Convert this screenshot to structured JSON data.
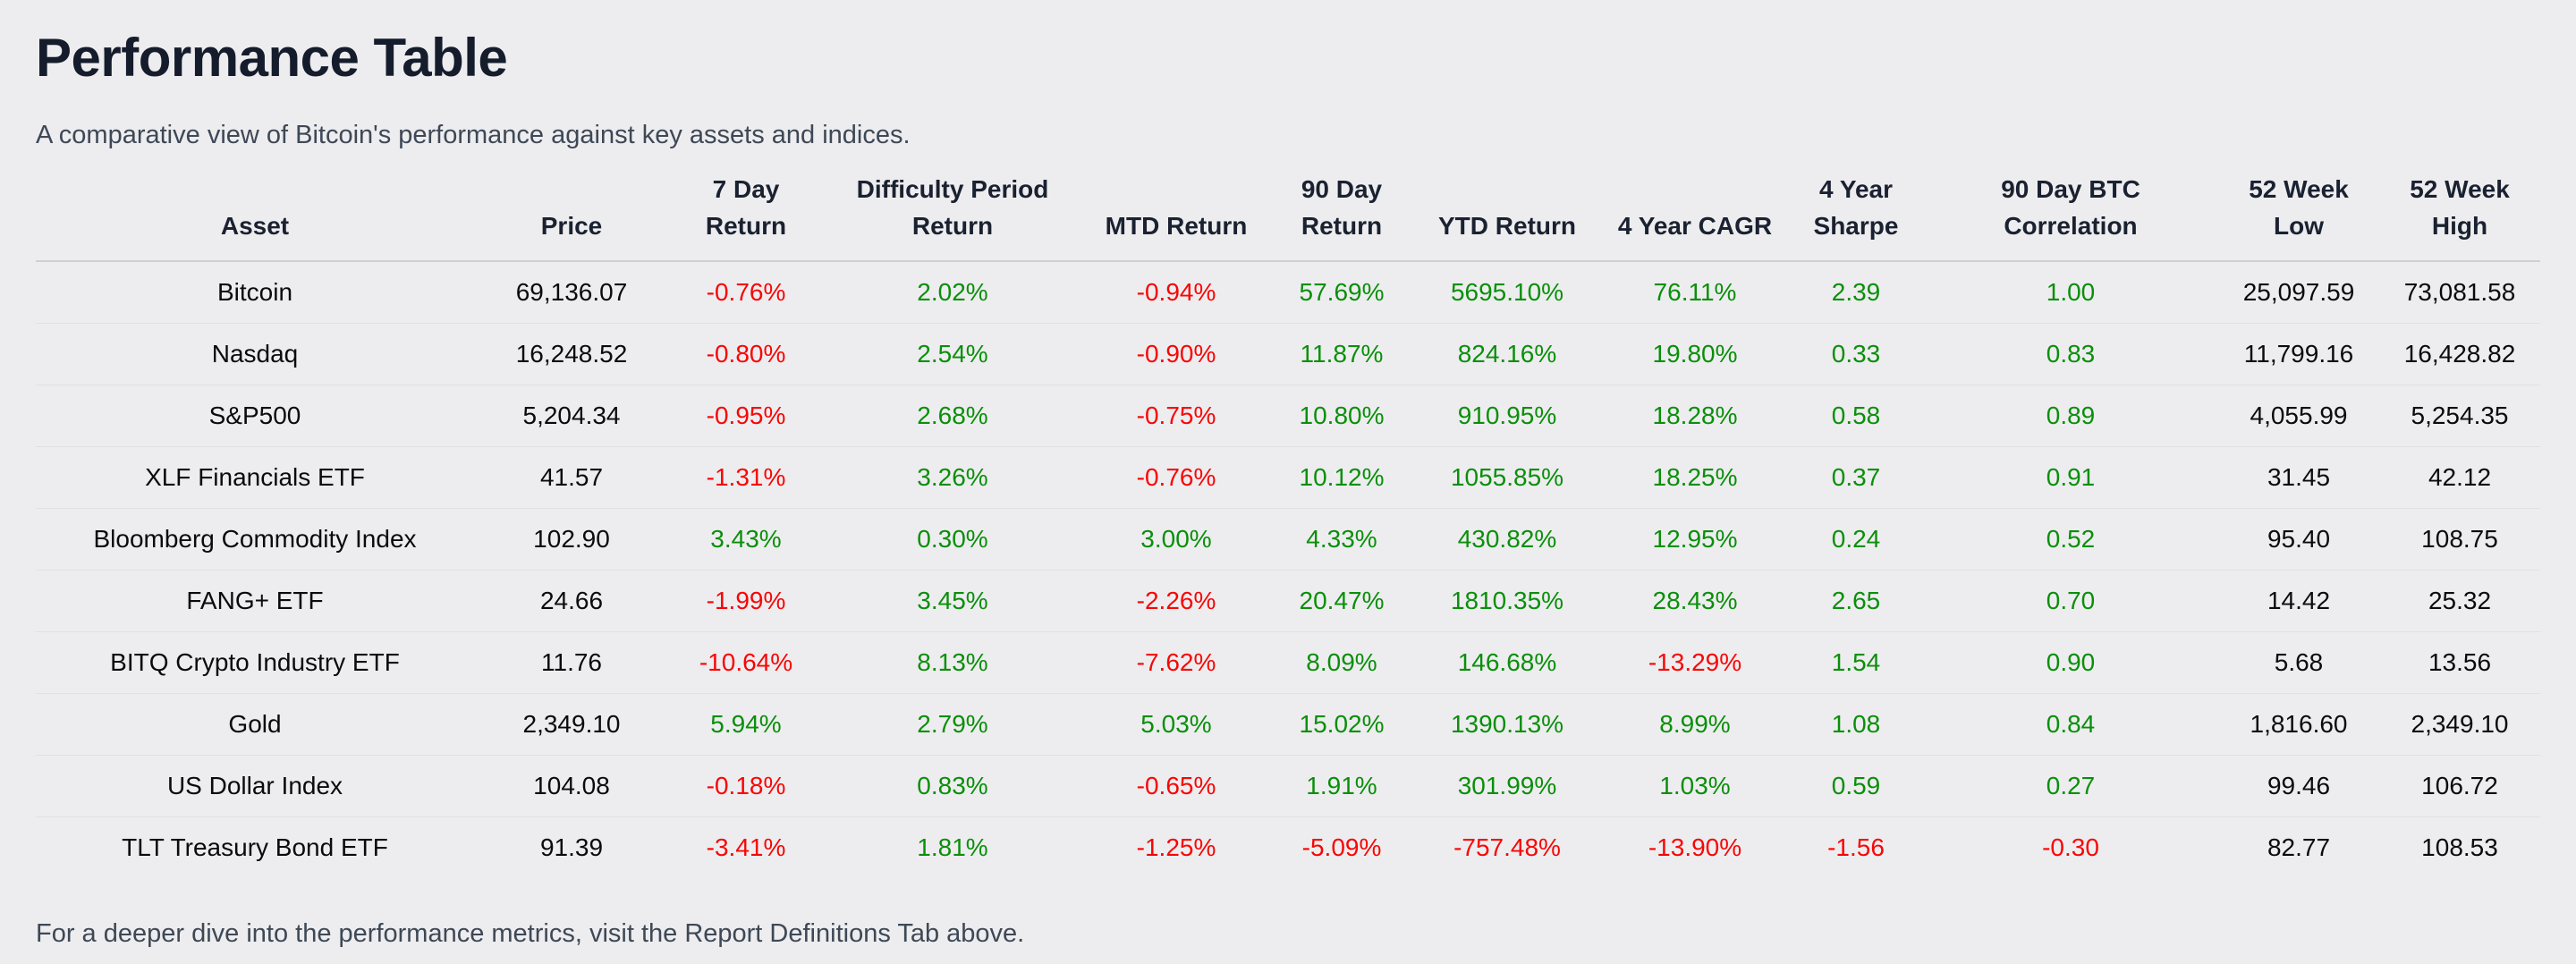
{
  "page": {
    "title": "Performance Table",
    "subtitle": "A comparative view of Bitcoin's performance against key assets and indices.",
    "footer": "For a deeper dive into the performance metrics, visit the Report Definitions Tab above."
  },
  "colors": {
    "background": "#ededef",
    "heading": "#151c2c",
    "muted_text": "#3e4856",
    "cell_text": "#0b0b0c",
    "positive": "#0a8f0a",
    "negative": "#f90505",
    "row_divider": "#dfe1e4",
    "header_underline": "#ccd0d6"
  },
  "table": {
    "columns": [
      "Asset",
      "Price",
      "7 Day Return",
      "Difficulty Period\nReturn",
      "MTD Return",
      "90 Day\nReturn",
      "YTD Return",
      "4 Year CAGR",
      "4 Year\nSharpe",
      "90 Day BTC\nCorrelation",
      "52 Week Low",
      "52 Week High"
    ],
    "column_keys": [
      "asset",
      "price",
      "7-day-return",
      "difficulty-period-return",
      "mtd-return",
      "90-day-return",
      "ytd-return",
      "4-year-cagr",
      "4-year-sharpe",
      "90-day-btc-correlation",
      "52-week-low",
      "52-week-high"
    ],
    "signed_color_columns": [
      2,
      3,
      4,
      5,
      6,
      7,
      8,
      9
    ],
    "rows": [
      [
        "Bitcoin",
        "69,136.07",
        "-0.76%",
        "2.02%",
        "-0.94%",
        "57.69%",
        "5695.10%",
        "76.11%",
        "2.39",
        "1.00",
        "25,097.59",
        "73,081.58"
      ],
      [
        "Nasdaq",
        "16,248.52",
        "-0.80%",
        "2.54%",
        "-0.90%",
        "11.87%",
        "824.16%",
        "19.80%",
        "0.33",
        "0.83",
        "11,799.16",
        "16,428.82"
      ],
      [
        "S&P500",
        "5,204.34",
        "-0.95%",
        "2.68%",
        "-0.75%",
        "10.80%",
        "910.95%",
        "18.28%",
        "0.58",
        "0.89",
        "4,055.99",
        "5,254.35"
      ],
      [
        "XLF Financials ETF",
        "41.57",
        "-1.31%",
        "3.26%",
        "-0.76%",
        "10.12%",
        "1055.85%",
        "18.25%",
        "0.37",
        "0.91",
        "31.45",
        "42.12"
      ],
      [
        "Bloomberg Commodity Index",
        "102.90",
        "3.43%",
        "0.30%",
        "3.00%",
        "4.33%",
        "430.82%",
        "12.95%",
        "0.24",
        "0.52",
        "95.40",
        "108.75"
      ],
      [
        "FANG+ ETF",
        "24.66",
        "-1.99%",
        "3.45%",
        "-2.26%",
        "20.47%",
        "1810.35%",
        "28.43%",
        "2.65",
        "0.70",
        "14.42",
        "25.32"
      ],
      [
        "BITQ Crypto Industry ETF",
        "11.76",
        "-10.64%",
        "8.13%",
        "-7.62%",
        "8.09%",
        "146.68%",
        "-13.29%",
        "1.54",
        "0.90",
        "5.68",
        "13.56"
      ],
      [
        "Gold",
        "2,349.10",
        "5.94%",
        "2.79%",
        "5.03%",
        "15.02%",
        "1390.13%",
        "8.99%",
        "1.08",
        "0.84",
        "1,816.60",
        "2,349.10"
      ],
      [
        "US Dollar Index",
        "104.08",
        "-0.18%",
        "0.83%",
        "-0.65%",
        "1.91%",
        "301.99%",
        "1.03%",
        "0.59",
        "0.27",
        "99.46",
        "106.72"
      ],
      [
        "TLT Treasury Bond ETF",
        "91.39",
        "-3.41%",
        "1.81%",
        "-1.25%",
        "-5.09%",
        "-757.48%",
        "-13.90%",
        "-1.56",
        "-0.30",
        "82.77",
        "108.53"
      ]
    ]
  }
}
